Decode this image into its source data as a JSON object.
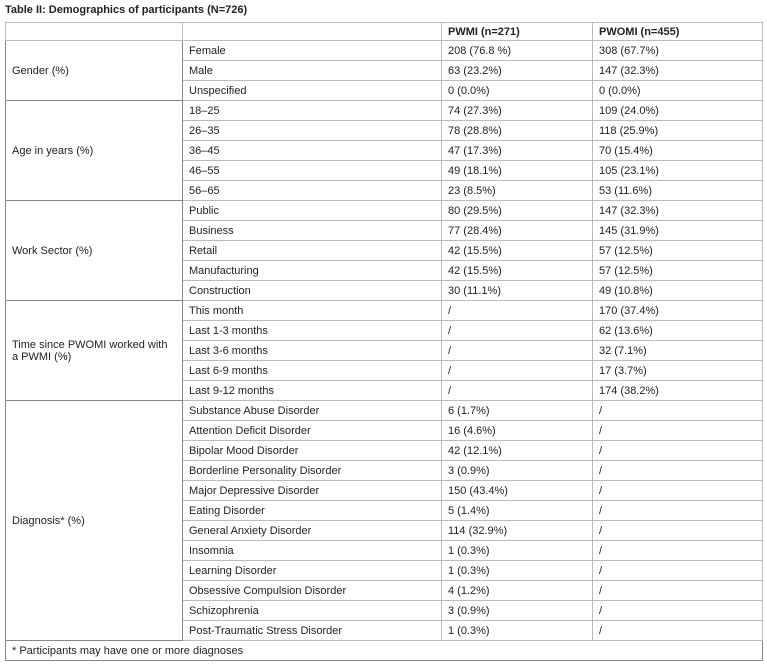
{
  "title": "Table II: Demographics of participants (N=726)",
  "table": {
    "headers": [
      "PWMI (n=271)",
      "PWOMI (n=455)"
    ],
    "groups": [
      {
        "label": "Gender (%)",
        "rows": [
          [
            "Female",
            "208 (76.8 %)",
            "308 (67.7%)"
          ],
          [
            "Male",
            "63 (23.2%)",
            "147 (32.3%)"
          ],
          [
            "Unspecified",
            "0 (0.0%)",
            "0 (0.0%)"
          ]
        ]
      },
      {
        "label": "Age in years (%)",
        "rows": [
          [
            "18–25",
            "74 (27.3%)",
            "109 (24.0%)"
          ],
          [
            "26–35",
            "78 (28.8%)",
            "118 (25.9%)"
          ],
          [
            "36–45",
            "47 (17.3%)",
            "70 (15.4%)"
          ],
          [
            "46–55",
            "49 (18.1%)",
            "105 (23.1%)"
          ],
          [
            "56–65",
            "23 (8.5%)",
            "53 (11.6%)"
          ]
        ]
      },
      {
        "label": "Work Sector (%)",
        "rows": [
          [
            "Public",
            "80 (29.5%)",
            "147 (32.3%)"
          ],
          [
            "Business",
            "77 (28.4%)",
            "145 (31.9%)"
          ],
          [
            "Retail",
            "42 (15.5%)",
            "57 (12.5%)"
          ],
          [
            "Manufacturing",
            "42 (15.5%)",
            "57 (12.5%)"
          ],
          [
            "Construction",
            "30 (11.1%)",
            "49 (10.8%)"
          ]
        ]
      },
      {
        "label": "Time since PWOMI worked with a PWMI (%)",
        "rows": [
          [
            "This month",
            "/",
            "170 (37.4%)"
          ],
          [
            "Last 1-3 months",
            "/",
            "62 (13.6%)"
          ],
          [
            "Last 3-6 months",
            "/",
            "32 (7.1%)"
          ],
          [
            "Last 6-9 months",
            "/",
            "17 (3.7%)"
          ],
          [
            "Last 9-12 months",
            "/",
            "174 (38.2%)"
          ]
        ]
      },
      {
        "label": "Diagnosis* (%)",
        "rows": [
          [
            "Substance Abuse Disorder",
            "6 (1.7%)",
            "/"
          ],
          [
            "Attention Deficit Disorder",
            "16 (4.6%)",
            "/"
          ],
          [
            "Bipolar Mood Disorder",
            "42 (12.1%)",
            "/"
          ],
          [
            "Borderline Personality Disorder",
            "3 (0.9%)",
            "/"
          ],
          [
            "Major Depressive Disorder",
            "150 (43.4%)",
            "/"
          ],
          [
            "Eating Disorder",
            "5 (1.4%)",
            "/"
          ],
          [
            "General Anxiety Disorder",
            "114 (32.9%)",
            "/"
          ],
          [
            "Insomnia",
            "1 (0.3%)",
            "/"
          ],
          [
            "Learning Disorder",
            "1 (0.3%)",
            "/"
          ],
          [
            "Obsessive Compulsion Disorder",
            "4 (1.2%)",
            "/"
          ],
          [
            "Schizophrenia",
            "3 (0.9%)",
            "/"
          ],
          [
            "Post-Traumatic Stress Disorder",
            "1 (0.3%)",
            "/"
          ]
        ]
      }
    ],
    "footnote": "* Participants may have one or more diagnoses"
  }
}
